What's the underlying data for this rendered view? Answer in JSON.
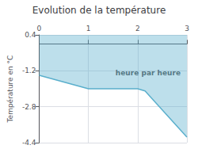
{
  "chart_data": {
    "type": "line",
    "title": "Evolution de la température",
    "ylabel": "Température en °C",
    "x": [
      0,
      1.0,
      2.0,
      2.15,
      3.0
    ],
    "values": [
      -1.4,
      -2.0,
      -2.0,
      -2.1,
      -4.15
    ],
    "color": "#5aafcc",
    "xlim": [
      0,
      3
    ],
    "ylim": [
      -4.4,
      0.4
    ],
    "xticks": [
      0,
      1,
      2,
      3
    ],
    "yticks": [
      0.4,
      -1.2,
      -2.8,
      -4.4
    ],
    "grid": true,
    "annotations": [
      {
        "text": "heure par heure",
        "x": 1.55,
        "y": -1.3
      }
    ]
  }
}
